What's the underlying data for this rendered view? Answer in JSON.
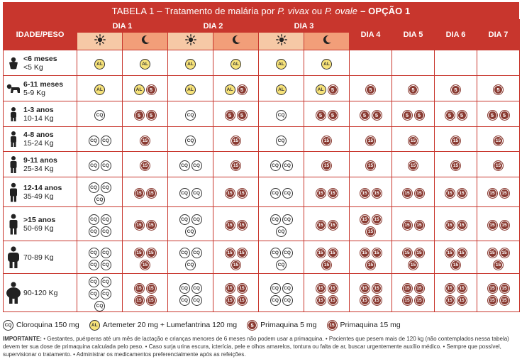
{
  "title": {
    "prefix": "TABELA 1",
    "dash": "–",
    "main": "Tratamento de malária por",
    "sp1": "P. vivax",
    "or": "ou",
    "sp2": "P. ovale",
    "option": "– OPÇÃO 1"
  },
  "header": {
    "age_weight": "IDADE/PESO",
    "days": [
      "DIA 1",
      "DIA 2",
      "DIA 3",
      "DIA 4",
      "DIA 5",
      "DIA 6",
      "DIA 7"
    ]
  },
  "rows": [
    {
      "age": "<6 meses",
      "weight": "<5 Kg",
      "icon": "baby-swaddled-icon",
      "cells": [
        [
          "AL"
        ],
        [
          "AL"
        ],
        [
          "AL"
        ],
        [
          "AL"
        ],
        [
          "AL"
        ],
        [
          "AL"
        ],
        [],
        [],
        [],
        []
      ]
    },
    {
      "age": "6-11 meses",
      "weight": "5-9 Kg",
      "icon": "crawling-baby-icon",
      "cells": [
        [
          "AL"
        ],
        [
          "AL",
          "5"
        ],
        [
          "AL"
        ],
        [
          "AL",
          "5"
        ],
        [
          "AL"
        ],
        [
          "AL",
          "5"
        ],
        [
          "5"
        ],
        [
          "5"
        ],
        [
          "5"
        ],
        [
          "5"
        ]
      ]
    },
    {
      "age": "1-3 anos",
      "weight": "10-14 Kg",
      "icon": "toddler-icon",
      "cells": [
        [
          "CQ"
        ],
        [
          "5",
          "5"
        ],
        [
          "CQ"
        ],
        [
          "5",
          "5"
        ],
        [
          "CQ"
        ],
        [
          "5",
          "5"
        ],
        [
          "5",
          "5"
        ],
        [
          "5",
          "5"
        ],
        [
          "5",
          "5"
        ],
        [
          "5",
          "5"
        ]
      ]
    },
    {
      "age": "4-8 anos",
      "weight": "15-24 Kg",
      "icon": "child-icon",
      "cells": [
        [
          "CQ",
          "CQ"
        ],
        [
          "15"
        ],
        [
          "CQ"
        ],
        [
          "15"
        ],
        [
          "CQ"
        ],
        [
          "15"
        ],
        [
          "15"
        ],
        [
          "15"
        ],
        [
          "15"
        ],
        [
          "15"
        ]
      ]
    },
    {
      "age": "9-11 anos",
      "weight": "25-34 Kg",
      "icon": "older-child-icon",
      "cells": [
        [
          "CQ",
          "CQ"
        ],
        [
          "15"
        ],
        [
          "CQ",
          "CQ"
        ],
        [
          "15"
        ],
        [
          "CQ",
          "CQ"
        ],
        [
          "15"
        ],
        [
          "15"
        ],
        [
          "15"
        ],
        [
          "15"
        ],
        [
          "15"
        ]
      ]
    },
    {
      "age": "12-14 anos",
      "weight": "35-49 Kg",
      "icon": "teen-icon",
      "cells": [
        [
          "CQ",
          "CQ",
          "CQ"
        ],
        [
          "15",
          "15"
        ],
        [
          "CQ",
          "CQ"
        ],
        [
          "15",
          "15"
        ],
        [
          "CQ",
          "CQ"
        ],
        [
          "15",
          "15"
        ],
        [
          "15",
          "15"
        ],
        [
          "15",
          "15"
        ],
        [
          "15",
          "15"
        ],
        [
          "15",
          "15"
        ]
      ]
    },
    {
      "age": ">15 anos",
      "weight": "50-69 Kg",
      "icon": "adult-icon",
      "cells": [
        [
          "CQ",
          "CQ",
          "CQ",
          "CQ"
        ],
        [
          "15",
          "15"
        ],
        [
          "CQ",
          "CQ",
          "CQ"
        ],
        [
          "15",
          "15"
        ],
        [
          "CQ",
          "CQ",
          "CQ"
        ],
        [
          "15",
          "15"
        ],
        [
          "15",
          "15",
          "15"
        ],
        [
          "15",
          "15"
        ],
        [
          "15",
          "15"
        ],
        [
          "15",
          "15"
        ]
      ]
    },
    {
      "age": "",
      "weight": "70-89 Kg",
      "icon": "heavy-adult-icon",
      "cells": [
        [
          "CQ",
          "CQ",
          "CQ",
          "CQ"
        ],
        [
          "15",
          "15",
          "15"
        ],
        [
          "CQ",
          "CQ",
          "CQ"
        ],
        [
          "15",
          "15",
          "15"
        ],
        [
          "CQ",
          "CQ",
          "CQ"
        ],
        [
          "15",
          "15",
          "15"
        ],
        [
          "15",
          "15",
          "15"
        ],
        [
          "15",
          "15",
          "15"
        ],
        [
          "15",
          "15",
          "15"
        ],
        [
          "15",
          "15",
          "15"
        ]
      ]
    },
    {
      "age": "",
      "weight": "90-120 Kg",
      "icon": "obese-adult-icon",
      "cells": [
        [
          "CQ",
          "CQ",
          "CQ",
          "CQ",
          "CQ"
        ],
        [
          "15",
          "15",
          "15",
          "15"
        ],
        [
          "CQ",
          "CQ",
          "CQ",
          "CQ"
        ],
        [
          "15",
          "15",
          "15",
          "15"
        ],
        [
          "CQ",
          "CQ",
          "CQ",
          "CQ"
        ],
        [
          "15",
          "15",
          "15",
          "15"
        ],
        [
          "15",
          "15",
          "15",
          "15"
        ],
        [
          "15",
          "15",
          "15",
          "15"
        ],
        [
          "15",
          "15",
          "15",
          "15"
        ],
        [
          "15",
          "15",
          "15",
          "15"
        ]
      ]
    }
  ],
  "legend": {
    "cq_tag": "CQ",
    "cq": "Cloroquina 150 mg",
    "al_tag": "AL",
    "al": "Artemeter 20 mg + Lumefantrina 120 mg",
    "p5_tag": "5",
    "p5": "Primaquina 5 mg",
    "p15_tag": "15",
    "p15": "Primaquina 15 mg"
  },
  "notes": {
    "important": "IMPORTANTE:",
    "text": "• Gestantes, puérperas até um mês de lactação e crianças menores de 6 meses não podem usar a primaquina. • Pacientes que pesem mais de 120 kg (não contemplados nessa tabela) devem ter sua dose de primaquina calculada pelo peso. • Caso surja urina escura, icterícia, pele e olhos amarelos, tontura ou falta de ar, buscar urgentemente auxílio médico. • Sempre que possível, supervisionar o tratamento. • Administrar os medicamentos preferencialmente após as refeições."
  },
  "colors": {
    "brand_red": "#c8362d",
    "sun_bg": "#f6c9a6",
    "moon_bg": "#f29e79",
    "al_yellow": "#f7e37a",
    "primaquina_brown": "#8a3b32"
  }
}
